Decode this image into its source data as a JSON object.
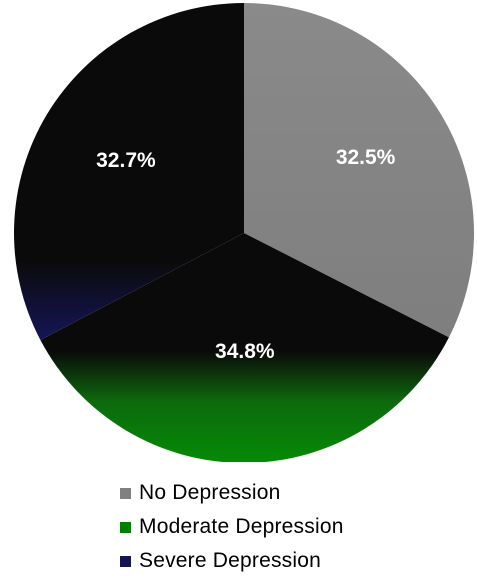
{
  "chart_data": {
    "type": "pie",
    "categories": [
      "No Depression",
      "Moderate Depression",
      "Severe Depression"
    ],
    "values": [
      32.5,
      34.8,
      32.7
    ],
    "labels": [
      "32.5%",
      "34.8%",
      "32.7%"
    ],
    "colors": [
      "#808080",
      "#008000",
      "#1a1a66"
    ],
    "legend_position": "bottom"
  }
}
